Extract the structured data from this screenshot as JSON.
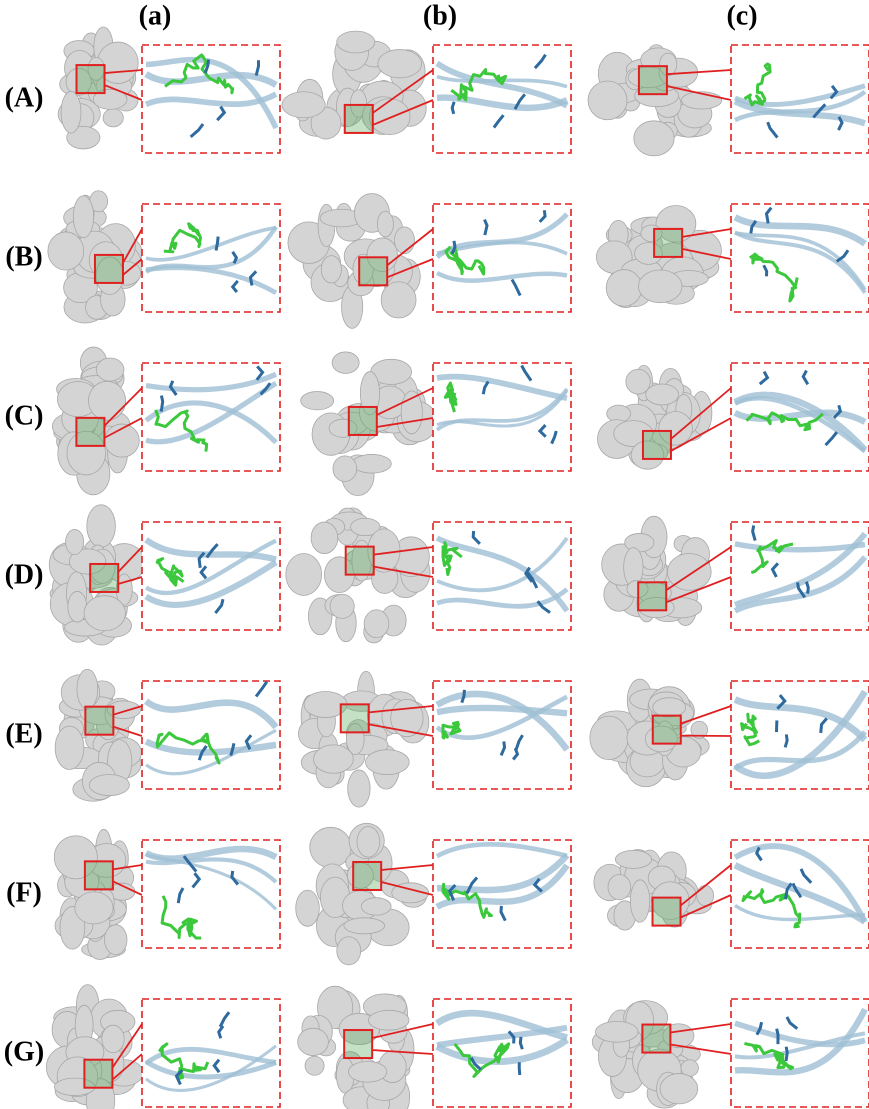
{
  "columns": [
    "(a)",
    "(b)",
    "(c)"
  ],
  "rows": [
    "(A)",
    "(B)",
    "(C)",
    "(D)",
    "(E)",
    "(F)",
    "(G)"
  ]
}
